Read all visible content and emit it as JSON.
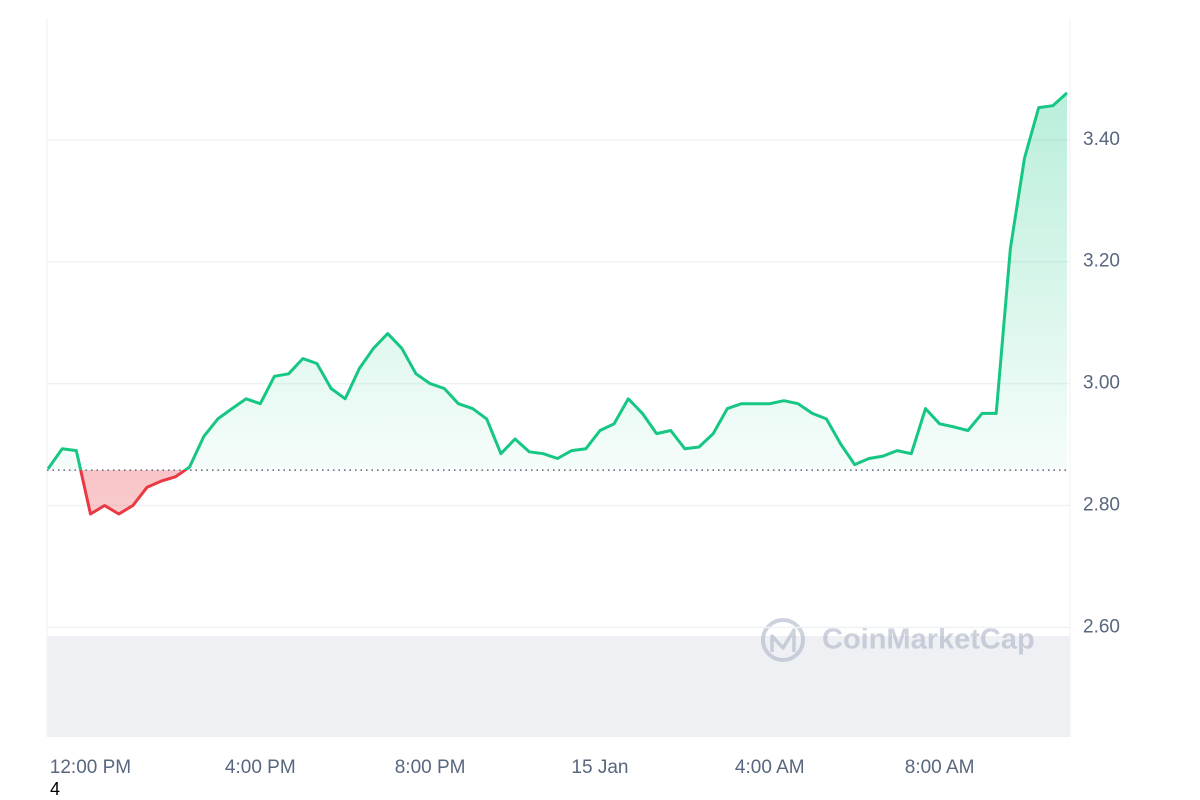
{
  "chart_data": {
    "type": "line",
    "categories": [
      null,
      null,
      null,
      "12:00 PM",
      null,
      null,
      null,
      null,
      null,
      null,
      null,
      null,
      null,
      null,
      null,
      "4:00 PM",
      null,
      null,
      null,
      null,
      null,
      null,
      null,
      null,
      null,
      null,
      null,
      "8:00 PM",
      null,
      null,
      null,
      null,
      null,
      null,
      null,
      null,
      null,
      null,
      null,
      "15 Jan",
      null,
      null,
      null,
      null,
      null,
      null,
      null,
      null,
      null,
      null,
      null,
      "4:00 AM",
      null,
      null,
      null,
      null,
      null,
      null,
      null,
      null,
      null,
      null,
      null,
      "8:00 AM",
      null,
      null,
      null,
      null,
      null,
      null,
      null,
      null,
      null
    ],
    "values": [
      2.86,
      2.893,
      2.89,
      2.786,
      2.8,
      2.786,
      2.8,
      2.83,
      2.84,
      2.847,
      2.863,
      2.913,
      2.942,
      2.959,
      2.975,
      2.967,
      3.012,
      3.016,
      3.041,
      3.033,
      2.992,
      2.975,
      3.025,
      3.058,
      3.082,
      3.058,
      3.016,
      3.0,
      2.992,
      2.967,
      2.959,
      2.942,
      2.885,
      2.909,
      2.888,
      2.885,
      2.877,
      2.89,
      2.893,
      2.923,
      2.934,
      2.975,
      2.951,
      2.918,
      2.923,
      2.893,
      2.896,
      2.918,
      2.959,
      2.967,
      2.967,
      2.967,
      2.972,
      2.967,
      2.951,
      2.942,
      2.901,
      2.867,
      2.877,
      2.881,
      2.89,
      2.885,
      2.959,
      2.934,
      2.929,
      2.923,
      2.951,
      2.951,
      3.222,
      3.37,
      3.453,
      3.456,
      3.477
    ],
    "baseline": 2.858,
    "up_color": "#16c784",
    "down_color": "#ea3943",
    "ylim": [
      2.42,
      3.6
    ],
    "yticks": [
      {
        "value": 2.6,
        "label": "2.60"
      },
      {
        "value": 2.8,
        "label": "2.80"
      },
      {
        "value": 3.0,
        "label": "3.00"
      },
      {
        "value": 3.2,
        "label": "3.20"
      },
      {
        "value": 3.4,
        "label": "3.40"
      }
    ],
    "grid": true,
    "watermark": "CoinMarketCap",
    "footnote": "4"
  }
}
